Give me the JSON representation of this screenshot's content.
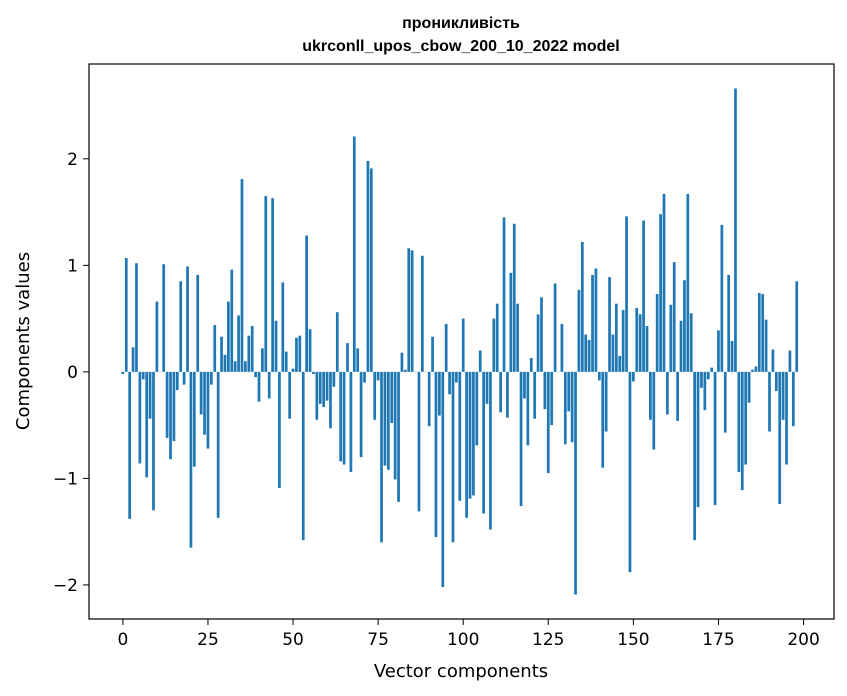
{
  "chart_data": {
    "type": "bar",
    "title": "проникливість",
    "subtitle": "ukrconll_upos_cbow_200_10_2022 model",
    "xlabel": "Vector components",
    "ylabel": "Components values",
    "xlim": [
      -9.95,
      208.95
    ],
    "ylim": [
      -2.32,
      2.89
    ],
    "xticks": [
      0,
      25,
      50,
      75,
      100,
      125,
      150,
      175,
      200
    ],
    "yticks": [
      -2,
      -1,
      0,
      1,
      2
    ],
    "xtick_labels": [
      "0",
      "25",
      "50",
      "75",
      "100",
      "125",
      "150",
      "175",
      "200"
    ],
    "ytick_labels": [
      "−2",
      "−1",
      "0",
      "1",
      "2"
    ],
    "bar_color": "#1f77b4",
    "grid": false,
    "x_start": 0,
    "values": [
      -0.02,
      1.07,
      -1.38,
      0.23,
      1.02,
      -0.86,
      -0.07,
      -0.99,
      -0.44,
      -1.3,
      0.66,
      0.0,
      1.01,
      -0.62,
      -0.82,
      -0.65,
      -0.17,
      0.85,
      -0.12,
      0.99,
      -1.65,
      -0.89,
      0.91,
      -0.4,
      -0.59,
      -0.72,
      -0.12,
      0.44,
      -1.37,
      0.33,
      0.16,
      0.66,
      0.96,
      0.1,
      0.53,
      1.81,
      0.1,
      0.34,
      0.43,
      -0.05,
      -0.28,
      0.22,
      1.65,
      -0.25,
      1.63,
      0.48,
      -1.09,
      0.84,
      0.19,
      -0.44,
      0.03,
      0.32,
      0.34,
      -1.58,
      1.28,
      0.4,
      -0.02,
      -0.45,
      -0.3,
      -0.33,
      -0.27,
      -0.53,
      -0.14,
      0.56,
      -0.84,
      -0.87,
      0.27,
      -0.94,
      2.21,
      0.22,
      -0.8,
      -0.1,
      1.98,
      1.91,
      -0.45,
      -0.08,
      -1.6,
      -0.88,
      -0.92,
      -0.48,
      -1.01,
      -1.22,
      0.18,
      0.02,
      1.16,
      1.14,
      0.0,
      -1.31,
      1.09,
      0.0,
      -0.51,
      0.33,
      -1.55,
      -0.41,
      -2.02,
      0.45,
      -0.21,
      -1.6,
      -0.1,
      -1.21,
      0.5,
      -1.37,
      -1.19,
      -1.16,
      -0.69,
      0.2,
      -1.33,
      -0.3,
      -1.48,
      0.5,
      0.64,
      -0.38,
      1.45,
      -0.43,
      0.93,
      1.39,
      0.64,
      -1.26,
      -0.25,
      -0.69,
      0.13,
      -0.44,
      0.54,
      0.7,
      -0.35,
      -0.95,
      -0.5,
      0.83,
      0.0,
      0.45,
      -0.68,
      -0.37,
      -0.66,
      -2.09,
      0.77,
      1.22,
      0.35,
      0.3,
      0.91,
      0.97,
      -0.08,
      -0.9,
      -0.56,
      0.89,
      0.35,
      0.64,
      0.15,
      0.58,
      1.46,
      -1.88,
      -0.09,
      0.6,
      0.54,
      1.42,
      0.43,
      -0.45,
      -0.73,
      0.73,
      1.48,
      1.67,
      -0.4,
      0.63,
      1.03,
      -0.46,
      0.48,
      0.86,
      1.67,
      0.55,
      -1.58,
      -1.27,
      -0.15,
      -0.36,
      -0.07,
      0.04,
      -1.25,
      0.39,
      1.38,
      -0.57,
      0.91,
      0.29,
      2.66,
      -0.94,
      -1.11,
      -0.87,
      -0.29,
      0.02,
      0.05,
      0.74,
      0.73,
      0.49,
      -0.56,
      0.21,
      -0.18,
      -1.24,
      -0.45,
      -0.87,
      0.2,
      -0.51,
      0.85
    ]
  }
}
